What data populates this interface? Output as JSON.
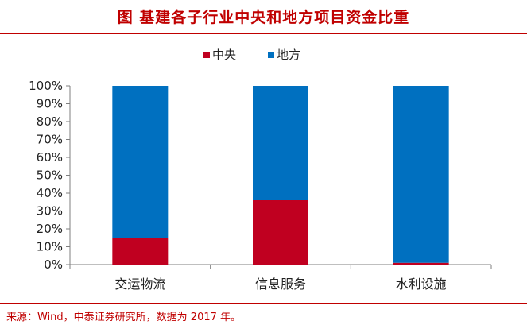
{
  "title": "图  基建各子行业中央和地方项目资金比重",
  "source": "来源：Wind，中泰证券研究所，数据为 2017 年。",
  "colors": {
    "accent": "#c00000",
    "central": "#c00020",
    "local": "#0070c0"
  },
  "chart_data": {
    "type": "bar",
    "stacked": true,
    "categories": [
      "交运物流",
      "信息服务",
      "水利设施"
    ],
    "series": [
      {
        "name": "中央",
        "values": [
          15,
          36,
          1
        ],
        "color": "#c00020"
      },
      {
        "name": "地方",
        "values": [
          85,
          64,
          99
        ],
        "color": "#0070c0"
      }
    ],
    "yticks": [
      "0%",
      "10%",
      "20%",
      "30%",
      "40%",
      "50%",
      "60%",
      "70%",
      "80%",
      "90%",
      "100%"
    ],
    "ylim": [
      0,
      100
    ],
    "legend": "top-center",
    "grid": false
  }
}
